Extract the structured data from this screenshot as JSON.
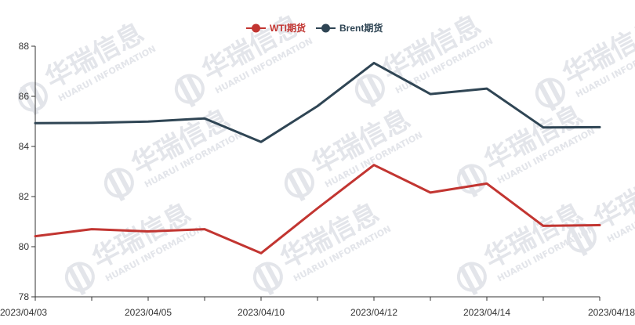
{
  "chart_data": {
    "type": "line",
    "title": "",
    "xlabel": "",
    "ylabel": "",
    "ylim": [
      78,
      88
    ],
    "yticks": [
      78,
      80,
      82,
      84,
      86,
      88
    ],
    "x": [
      "2023/04/03",
      "2023/04/04",
      "2023/04/05",
      "2023/04/06",
      "2023/04/10",
      "2023/04/11",
      "2023/04/12",
      "2023/04/13",
      "2023/04/14",
      "2023/04/17",
      "2023/04/18"
    ],
    "x_labels_shown": [
      "2023/04/03",
      "2023/04/05",
      "2023/04/10",
      "2023/04/12",
      "2023/04/14",
      "2023/04/18"
    ],
    "series": [
      {
        "name": "WTI期货",
        "color": "#c23531",
        "values": [
          80.42,
          80.7,
          80.61,
          80.7,
          79.74,
          81.53,
          83.26,
          82.16,
          82.52,
          80.83,
          80.86
        ]
      },
      {
        "name": "Brent期货",
        "color": "#2f4554",
        "values": [
          84.93,
          84.94,
          84.99,
          85.12,
          84.18,
          85.61,
          87.33,
          86.09,
          86.31,
          84.76,
          84.77
        ]
      }
    ],
    "legend_position": "top-center",
    "grid": false
  },
  "watermark": {
    "chinese": "华瑞信息",
    "english": "HUARUI INFORMATION"
  }
}
